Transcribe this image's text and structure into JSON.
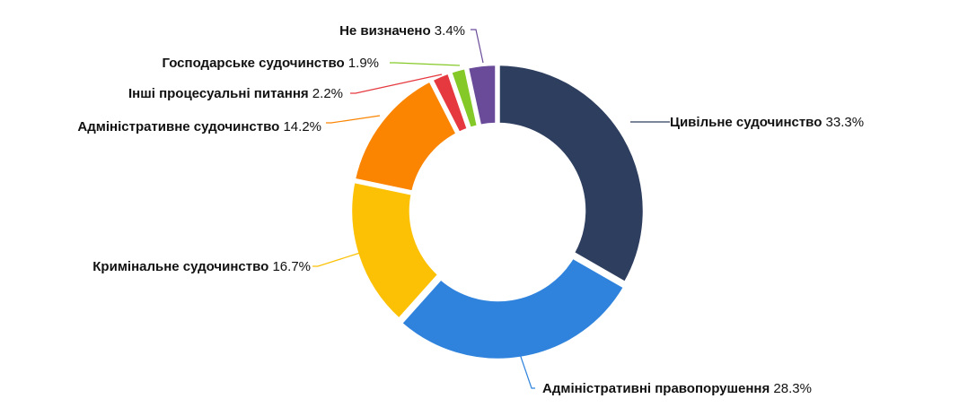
{
  "chart_data": {
    "type": "pie",
    "donut": true,
    "slices": [
      {
        "name": "Цивільне судочинство",
        "value": 33.3,
        "value_text": "33.3%",
        "color": "#2e3e5f"
      },
      {
        "name": "Адміністративні правопорушення",
        "value": 28.3,
        "value_text": "28.3%",
        "color": "#2f83dd"
      },
      {
        "name": "Кримінальне судочинство",
        "value": 16.7,
        "value_text": "16.7%",
        "color": "#fcc104"
      },
      {
        "name": "Адміністративне судочинство",
        "value": 14.2,
        "value_text": "14.2%",
        "color": "#fb8400"
      },
      {
        "name": "Інші процесуальні питання",
        "value": 2.2,
        "value_text": "2.2%",
        "color": "#e5393f"
      },
      {
        "name": "Господарське судочинство",
        "value": 1.9,
        "value_text": "1.9%",
        "color": "#84c927"
      },
      {
        "name": "Не визначено",
        "value": 3.4,
        "value_text": "3.4%",
        "color": "#6a4b9a"
      }
    ]
  }
}
